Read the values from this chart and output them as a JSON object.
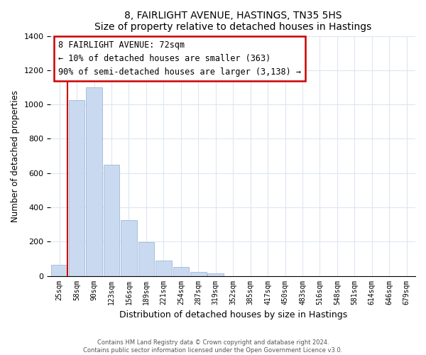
{
  "title": "8, FAIRLIGHT AVENUE, HASTINGS, TN35 5HS",
  "subtitle": "Size of property relative to detached houses in Hastings",
  "xlabel": "Distribution of detached houses by size in Hastings",
  "ylabel": "Number of detached properties",
  "bar_labels": [
    "25sqm",
    "58sqm",
    "90sqm",
    "123sqm",
    "156sqm",
    "189sqm",
    "221sqm",
    "254sqm",
    "287sqm",
    "319sqm",
    "352sqm",
    "385sqm",
    "417sqm",
    "450sqm",
    "483sqm",
    "516sqm",
    "548sqm",
    "581sqm",
    "614sqm",
    "646sqm",
    "679sqm"
  ],
  "bar_values": [
    65,
    1025,
    1100,
    650,
    325,
    195,
    90,
    50,
    25,
    15,
    0,
    0,
    0,
    0,
    0,
    0,
    0,
    0,
    0,
    0,
    0
  ],
  "bar_color": "#c9daf0",
  "bar_edge_color": "#a0b8d8",
  "vline_color": "#cc0000",
  "ylim": [
    0,
    1400
  ],
  "yticks": [
    0,
    200,
    400,
    600,
    800,
    1000,
    1200,
    1400
  ],
  "annotation_text": "8 FAIRLIGHT AVENUE: 72sqm\n← 10% of detached houses are smaller (363)\n90% of semi-detached houses are larger (3,138) →",
  "annotation_box_color": "#ffffff",
  "annotation_box_edge": "#cc0000",
  "footer_line1": "Contains HM Land Registry data © Crown copyright and database right 2024.",
  "footer_line2": "Contains public sector information licensed under the Open Government Licence v3.0.",
  "grid_color": "#dce6f0"
}
